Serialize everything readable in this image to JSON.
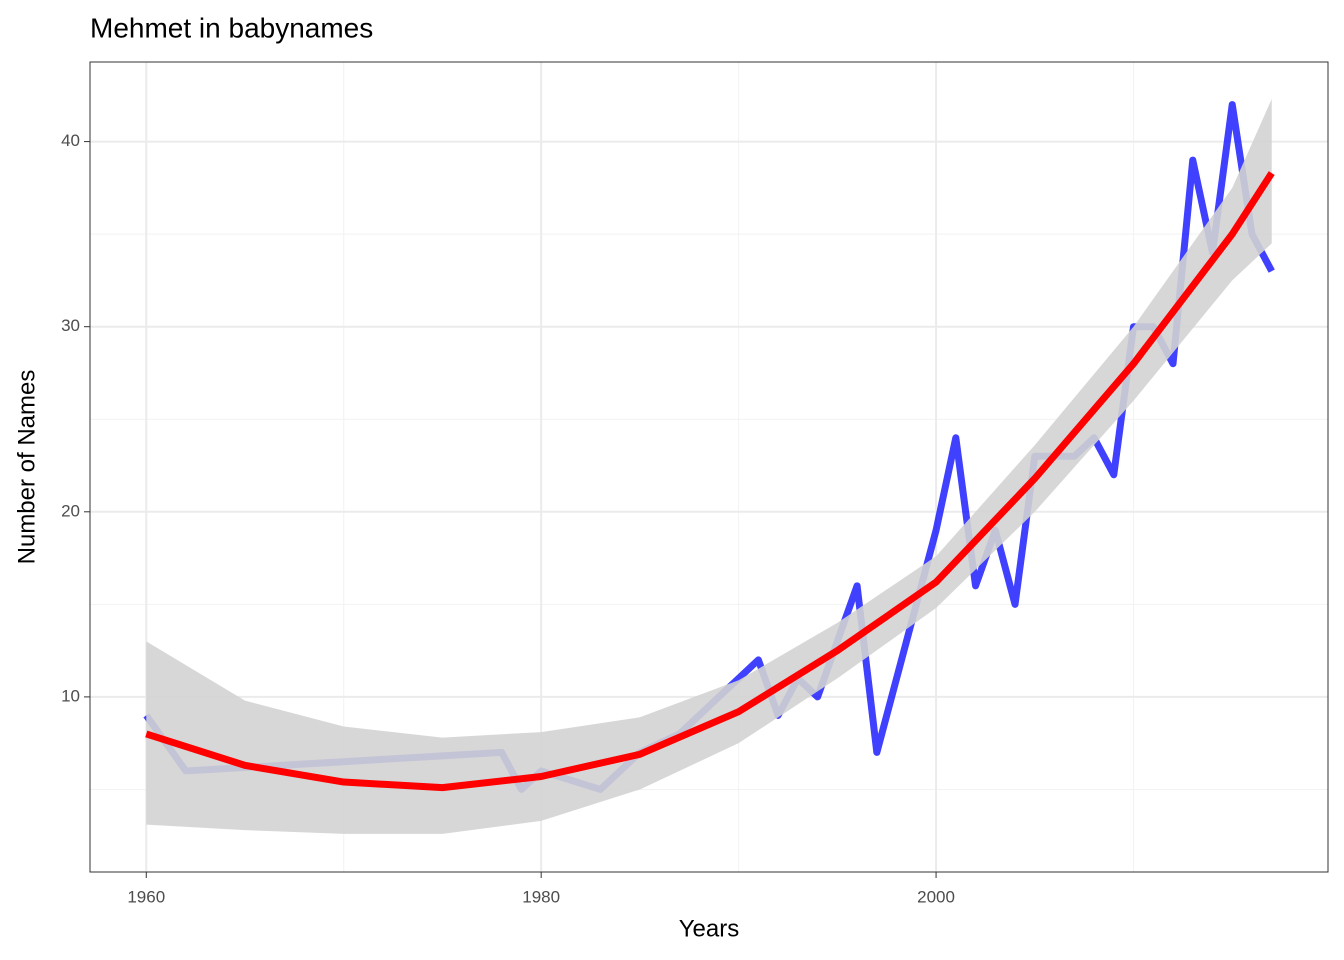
{
  "chart_data": {
    "type": "line",
    "title": "Mehmet in babynames",
    "x_label": "Years",
    "y_label": "Number of Names",
    "xlim": [
      1957.15,
      2019.85
    ],
    "ylim": [
      0.54,
      44.3
    ],
    "xticks": [
      1960,
      1980,
      2000
    ],
    "yticks": [
      10,
      20,
      30,
      40
    ],
    "x_minor_grid": [
      1970,
      1990,
      2010
    ],
    "y_minor_grid": [
      5,
      15,
      25,
      35
    ],
    "grid": true,
    "series": [
      {
        "color": "#0000ff",
        "x": [
          1960,
          1962,
          1978,
          1979,
          1980,
          1983,
          1985,
          1987,
          1991,
          1992,
          1993,
          1994,
          1996,
          1997,
          1999,
          2000,
          2001,
          2002,
          2003,
          2004,
          2005,
          2006,
          2007,
          2008,
          2009,
          2010,
          2011,
          2012,
          2013,
          2014,
          2015,
          2016,
          2017
        ],
        "values": [
          9,
          6,
          7,
          5,
          6,
          5,
          7,
          8,
          12,
          9,
          11,
          10,
          16,
          7,
          15,
          19,
          24,
          16,
          19,
          15,
          23,
          23,
          23,
          24,
          22,
          30,
          30,
          28,
          39,
          34,
          42,
          35,
          33
        ]
      },
      {
        "color": "#ff0000",
        "fill": "#d3d3d3",
        "x": [
          1960,
          1965,
          1970,
          1975,
          1980,
          1985,
          1990,
          1995,
          2000,
          2005,
          2010,
          2015,
          2017
        ],
        "values": [
          8,
          6.3,
          5.4,
          5.1,
          5.7,
          6.9,
          9.2,
          12.5,
          16.2,
          21.8,
          28.0,
          35.0,
          38.3
        ],
        "lower": [
          3.1,
          2.8,
          2.6,
          2.6,
          3.3,
          5.0,
          7.5,
          11.0,
          14.8,
          20.0,
          26.0,
          32.5,
          34.5
        ],
        "upper": [
          13,
          9.8,
          8.4,
          7.8,
          8.1,
          8.9,
          10.9,
          14.0,
          17.6,
          23.6,
          30.0,
          37.5,
          42.3
        ]
      }
    ]
  }
}
